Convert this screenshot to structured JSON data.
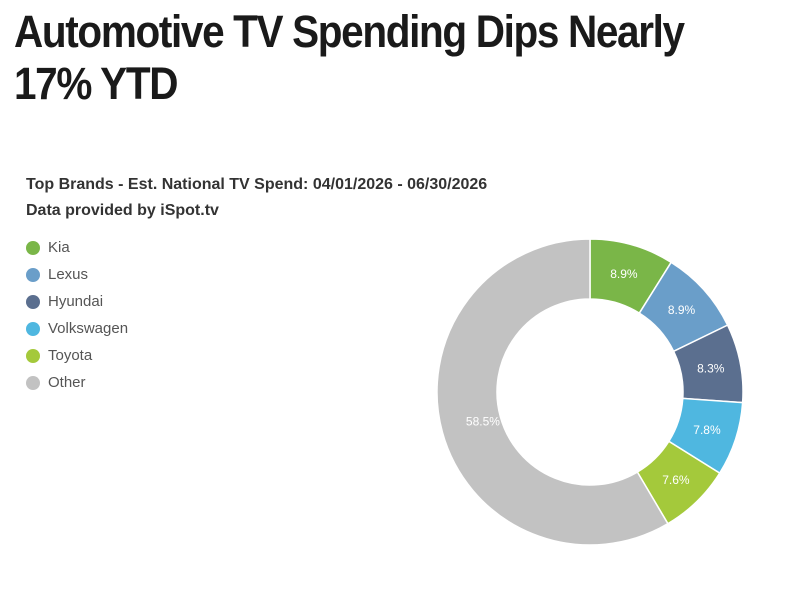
{
  "headline": "Automotive TV Spending Dips Nearly 17% YTD",
  "chart_data": {
    "type": "pie",
    "donut": true,
    "title": "Top Brands - Est. National TV Spend: 04/01/2026 - 06/30/2026",
    "subtitle": "Data provided by iSpot.tv",
    "legend_position": "top-left",
    "categories": [
      "Kia",
      "Lexus",
      "Hyundai",
      "Volkswagen",
      "Toyota",
      "Other"
    ],
    "values": [
      8.9,
      8.9,
      8.3,
      7.8,
      7.6,
      58.5
    ],
    "labels": [
      "8.9%",
      "8.9%",
      "8.3%",
      "7.8%",
      "7.6%",
      "58.5%"
    ],
    "colors": [
      "#7ab648",
      "#6a9ec9",
      "#5b6f8f",
      "#4fb7e0",
      "#a4c93b",
      "#c2c2c2"
    ]
  }
}
